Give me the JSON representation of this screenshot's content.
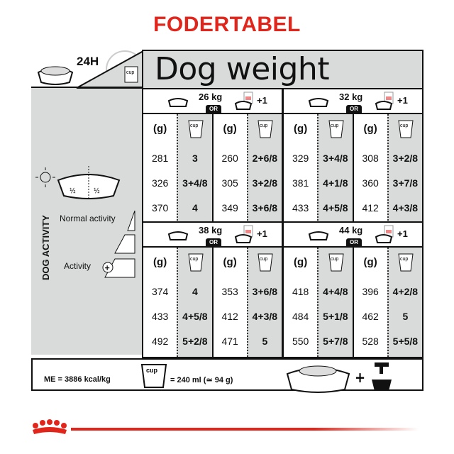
{
  "title": "FODERTABEL",
  "header": {
    "period": "24H",
    "heading": "Dog weight",
    "cup_label": "cup"
  },
  "sidebar": {
    "activity_label": "DOG ACTIVITY",
    "normal": "Normal activity",
    "more": "Activity",
    "half": "½"
  },
  "or_label": "OR",
  "plus_one": "+1",
  "g_label": "(g)",
  "blocks": [
    {
      "weight": "26 kg",
      "dry_g": [
        "281",
        "326",
        "370"
      ],
      "dry_cup": [
        "3",
        "3+4/8",
        "4"
      ],
      "mix_g": [
        "260",
        "305",
        "349"
      ],
      "mix_cup": [
        "2+6/8",
        "3+2/8",
        "3+6/8"
      ]
    },
    {
      "weight": "32 kg",
      "dry_g": [
        "329",
        "381",
        "433"
      ],
      "dry_cup": [
        "3+4/8",
        "4+1/8",
        "4+5/8"
      ],
      "mix_g": [
        "308",
        "360",
        "412"
      ],
      "mix_cup": [
        "3+2/8",
        "3+7/8",
        "4+3/8"
      ]
    },
    {
      "weight": "38 kg",
      "dry_g": [
        "374",
        "433",
        "492"
      ],
      "dry_cup": [
        "4",
        "4+5/8",
        "5+2/8"
      ],
      "mix_g": [
        "353",
        "412",
        "471"
      ],
      "mix_cup": [
        "3+6/8",
        "4+3/8",
        "5"
      ]
    },
    {
      "weight": "44 kg",
      "dry_g": [
        "418",
        "484",
        "550"
      ],
      "dry_cup": [
        "4+4/8",
        "5+1/8",
        "5+7/8"
      ],
      "mix_g": [
        "396",
        "462",
        "528"
      ],
      "mix_cup": [
        "4+2/8",
        "5",
        "5+5/8"
      ]
    }
  ],
  "footer": {
    "energy": "ME = 3886 kcal/kg",
    "cup_equiv": "= 240 ml (≃ 94 g)",
    "cup_label": "cup"
  },
  "colors": {
    "brand_red": "#e1251b",
    "panel_gray": "#d9dbdb"
  }
}
